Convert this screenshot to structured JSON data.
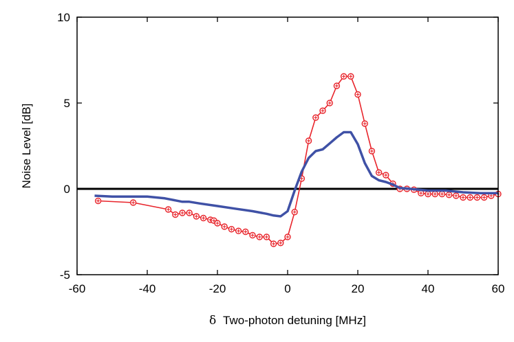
{
  "chart_data": {
    "type": "line",
    "title": "",
    "xlabel_symbol": "δ",
    "xlabel": "Two-photon detuning [MHz]",
    "ylabel": "Noise Level [dB]",
    "xlim": [
      -60,
      60
    ],
    "ylim": [
      -5,
      10
    ],
    "xticks": [
      -60,
      -40,
      -20,
      0,
      20,
      40,
      60
    ],
    "yticks": [
      -5,
      0,
      5,
      10
    ],
    "grid": false,
    "legend": "none",
    "reference_line": {
      "y": 0,
      "color": "#000000"
    },
    "series": [
      {
        "color": "#e8232a",
        "marker": "circle-plus",
        "x": [
          -54,
          -44,
          -34,
          -32,
          -30,
          -28,
          -26,
          -24,
          -22,
          -21,
          -20,
          -18,
          -16,
          -14,
          -12,
          -10,
          -8,
          -6,
          -4,
          -2,
          0,
          2,
          4,
          6,
          8,
          10,
          12,
          14,
          16,
          18,
          20,
          22,
          24,
          26,
          28,
          30,
          32,
          34,
          36,
          38,
          40,
          42,
          44,
          46,
          48,
          50,
          52,
          54,
          56,
          58,
          60
        ],
        "y": [
          -0.7,
          -0.8,
          -1.2,
          -1.5,
          -1.4,
          -1.4,
          -1.6,
          -1.7,
          -1.8,
          -1.85,
          -2.0,
          -2.2,
          -2.35,
          -2.45,
          -2.5,
          -2.7,
          -2.8,
          -2.8,
          -3.2,
          -3.15,
          -2.8,
          -1.35,
          0.6,
          2.8,
          4.15,
          4.55,
          5.0,
          6.0,
          6.55,
          6.55,
          5.5,
          3.8,
          2.2,
          0.95,
          0.8,
          0.3,
          0.0,
          0.0,
          -0.05,
          -0.25,
          -0.3,
          -0.3,
          -0.3,
          -0.35,
          -0.4,
          -0.5,
          -0.5,
          -0.5,
          -0.5,
          -0.4,
          -0.3
        ]
      },
      {
        "color": "#3f51a6",
        "marker": "none",
        "x": [
          -55,
          -50,
          -45,
          -40,
          -35,
          -30,
          -28,
          -25,
          -20,
          -15,
          -10,
          -6,
          -4,
          -2,
          0,
          2,
          4,
          6,
          8,
          10,
          12,
          14,
          16,
          18,
          20,
          22,
          24,
          26,
          28,
          30,
          32,
          35,
          40,
          45,
          50,
          55,
          60
        ],
        "y": [
          -0.4,
          -0.45,
          -0.45,
          -0.45,
          -0.55,
          -0.75,
          -0.75,
          -0.85,
          -1.0,
          -1.15,
          -1.3,
          -1.45,
          -1.55,
          -1.6,
          -1.3,
          -0.1,
          1.0,
          1.8,
          2.2,
          2.3,
          2.65,
          3.0,
          3.3,
          3.3,
          2.6,
          1.5,
          0.75,
          0.5,
          0.4,
          0.25,
          0.05,
          0.0,
          -0.1,
          -0.1,
          -0.2,
          -0.25,
          -0.25
        ]
      }
    ]
  }
}
